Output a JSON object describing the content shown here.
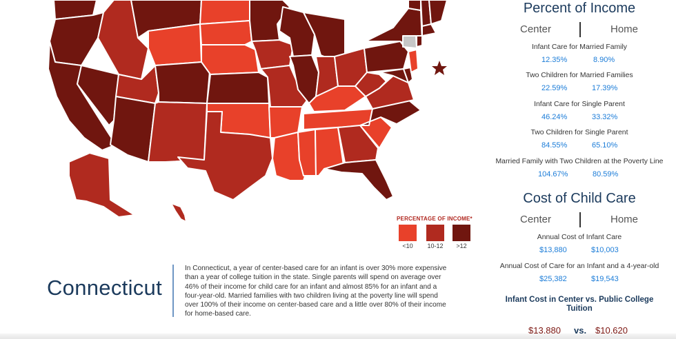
{
  "colors": {
    "lt10": "#e8412a",
    "mid": "#b02a1f",
    "gt12": "#70160f",
    "connecticut": "#c7c7c7",
    "border": "#ffffff",
    "accent_blue": "#1b7cd8",
    "title_navy": "#1b3a5c"
  },
  "map": {
    "selected_state": "Connecticut",
    "marker": "star-icon",
    "states_by_band": {
      "lt10": [
        "Wyoming",
        "Nebraska",
        "South Dakota",
        "North Dakota",
        "Oklahoma",
        "Arkansas",
        "Louisiana",
        "Mississippi",
        "Alabama",
        "Tennessee",
        "Kentucky",
        "South Carolina",
        "New Jersey"
      ],
      "mid": [
        "Idaho",
        "Utah",
        "New Mexico",
        "Texas",
        "Missouri",
        "Iowa",
        "Indiana",
        "Ohio",
        "West Virginia",
        "Virginia",
        "Georgia",
        "Alaska",
        "Hawaii"
      ],
      "gt12": [
        "Washington",
        "Oregon",
        "California",
        "Nevada",
        "Montana",
        "Arizona",
        "Colorado",
        "Kansas",
        "Minnesota",
        "Wisconsin",
        "Illinois",
        "Michigan",
        "Pennsylvania",
        "New York",
        "North Carolina",
        "Florida",
        "Maryland",
        "Massachusetts",
        "Vermont",
        "New Hampshire",
        "Maine",
        "Rhode Island",
        "Delaware"
      ]
    }
  },
  "legend": {
    "title": "PERCENTAGE OF INCOME*",
    "items": [
      {
        "label": "<10",
        "color": "#e8412a"
      },
      {
        "label": "10-12",
        "color": "#b02a1f"
      },
      {
        "label": ">12",
        "color": "#70160f"
      }
    ]
  },
  "state": {
    "name": "Connecticut",
    "description_lines": [
      "In Connecticut, a year of center-based care for an infant is over 30% more expensive",
      "than a year of college tuition in the state. Single parents will spend on average over",
      "46% of their income for child care for an infant and almost 85% for an infant and a",
      "four-year-old. Married families with two children living at the poverty line will spend",
      "over 100% of their income on center-based care and a little over 80% of their income",
      "for home-based care."
    ]
  },
  "percent_of_income": {
    "title": "Percent of Income",
    "col_center": "Center",
    "col_home": "Home",
    "rows": [
      {
        "label": "Infant Care for Married Family",
        "center": "12.35%",
        "home": "8.90%"
      },
      {
        "label": "Two Children for Married Families",
        "center": "22.59%",
        "home": "17.39%"
      },
      {
        "label": "Infant Care for Single Parent",
        "center": "46.24%",
        "home": "33.32%"
      },
      {
        "label": "Two Children for Single Parent",
        "center": "84.55%",
        "home": "65.10%"
      },
      {
        "label": "Married Family with Two Children at the Poverty Line",
        "center": "104.67%",
        "home": "80.59%"
      }
    ]
  },
  "cost_of_child_care": {
    "title": "Cost of Child Care",
    "col_center": "Center",
    "col_home": "Home",
    "rows": [
      {
        "label": "Annual Cost of Infant Care",
        "center": "$13,880",
        "home": "$10,003"
      },
      {
        "label": "Annual Cost of Care for an Infant and a 4-year-old",
        "center": "$25,382",
        "home": "$19,543"
      }
    ]
  },
  "comparison": {
    "title_line1": "Infant Cost in Center vs. Public College",
    "title_line2": "Tuition",
    "infant_cost": "$13,880",
    "vs": "vs.",
    "tuition": "$10,620"
  }
}
